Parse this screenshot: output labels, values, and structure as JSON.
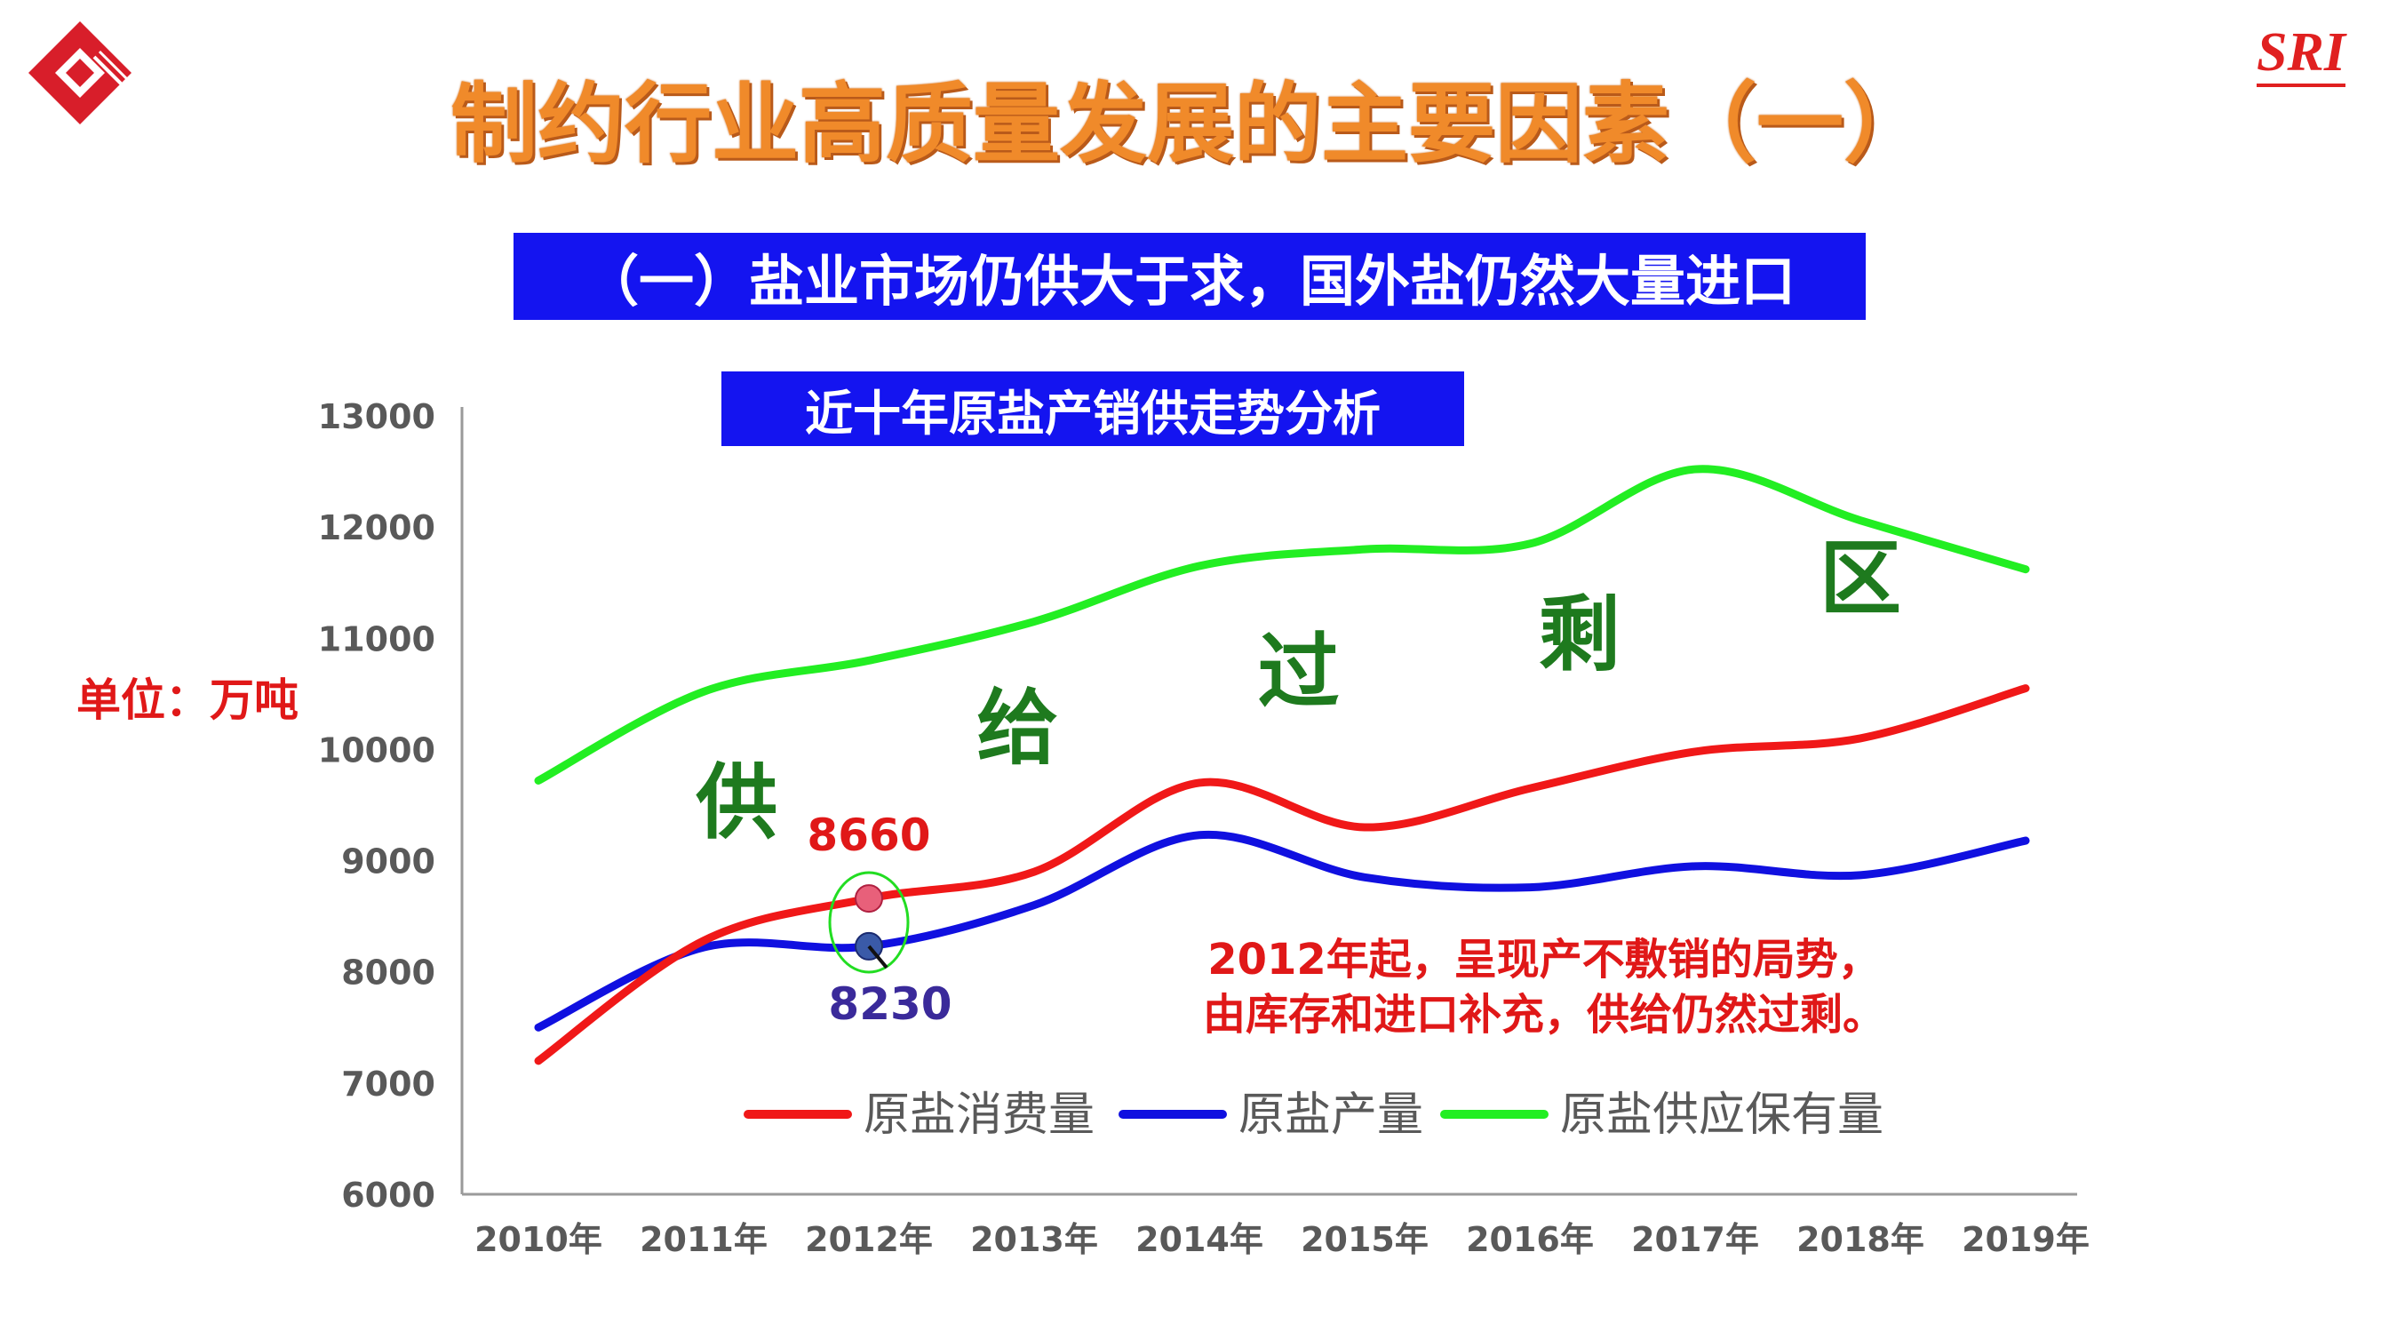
{
  "header": {
    "title": "制约行业高质量发展的主要因素（一）",
    "subtitle": "（一）盐业市场仍供大于求，国外盐仍然大量进口",
    "brand": "SRI"
  },
  "unit_label": "单位：万吨",
  "chart_data": {
    "type": "line",
    "title": "近十年原盐产销供走势分析",
    "categories": [
      "2010年",
      "2011年",
      "2012年",
      "2013年",
      "2014年",
      "2015年",
      "2016年",
      "2017年",
      "2018年",
      "2019年"
    ],
    "ylim": [
      6000,
      13000
    ],
    "yticks": [
      6000,
      7000,
      8000,
      9000,
      10000,
      11000,
      12000,
      13000
    ],
    "series": [
      {
        "name": "原盐消费量",
        "color": "#f01818",
        "values": [
          7200,
          8280,
          8660,
          8900,
          9700,
          9300,
          9650,
          9980,
          10100,
          10550
        ]
      },
      {
        "name": "原盐产量",
        "color": "#1010e0",
        "values": [
          7500,
          8220,
          8230,
          8600,
          9230,
          8850,
          8760,
          8950,
          8870,
          9180
        ]
      },
      {
        "name": "原盐供应保有量",
        "color": "#22ee22",
        "values": [
          9720,
          10520,
          10800,
          11150,
          11650,
          11800,
          11850,
          12520,
          12060,
          11620
        ]
      }
    ],
    "annotations": {
      "surplus_chars": [
        "供",
        "给",
        "过",
        "剩",
        "区"
      ],
      "point_high": "8660",
      "point_low": "8230",
      "note_line1": "2012年起，呈现产不敷销的局势，",
      "note_line2": "由库存和进口补充，供给仍然过剩。"
    },
    "legend": "bottom-center"
  },
  "colors": {
    "accent_orange": "#f08a2a",
    "banner_blue": "#1414f0",
    "surplus_green": "#1e7a1e",
    "note_red": "#e01818"
  }
}
